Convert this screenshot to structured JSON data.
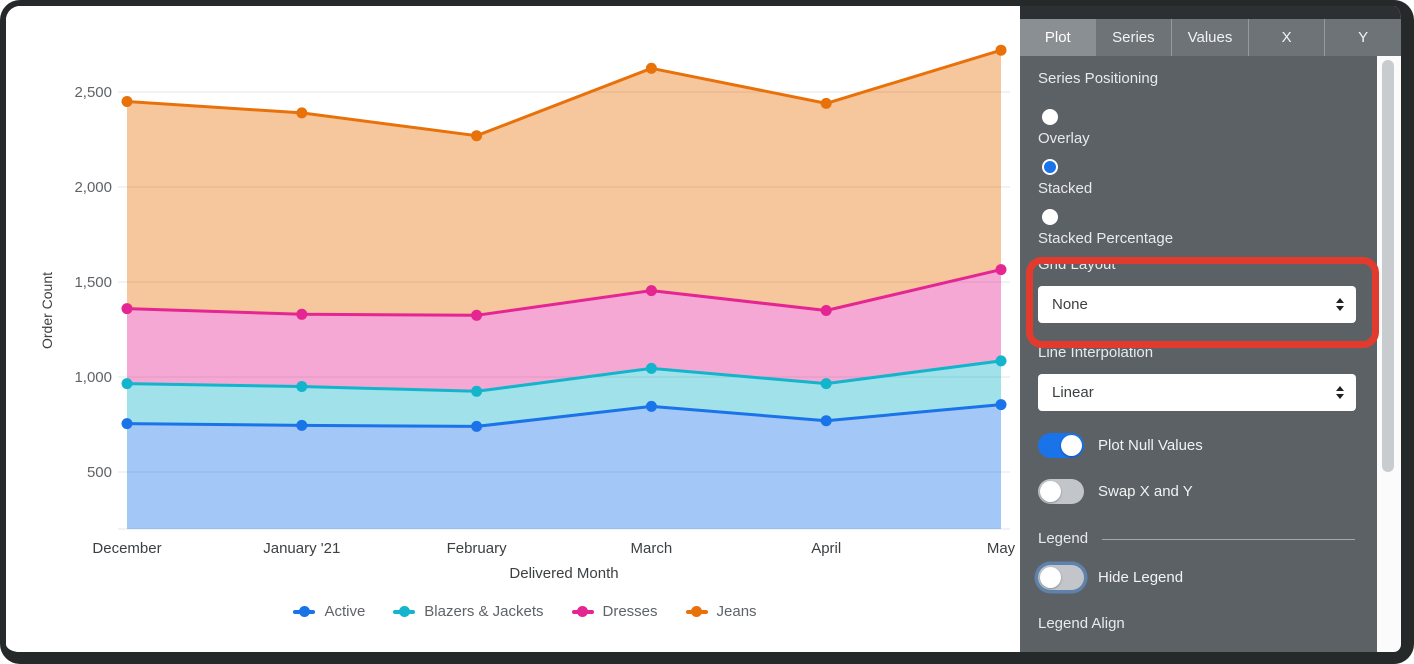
{
  "chart_data": {
    "type": "area",
    "stacking": "stacked",
    "title": "",
    "xlabel": "Delivered Month",
    "ylabel": "Order Count",
    "x": [
      "December",
      "January '21",
      "February",
      "March",
      "April",
      "May"
    ],
    "yticks": [
      500,
      1000,
      1500,
      2000,
      2500
    ],
    "ylim": [
      200,
      2780
    ],
    "grid": "horizontal",
    "legend_position": "bottom",
    "series": [
      {
        "name": "Active",
        "color": "#1a73e8",
        "values": [
          755,
          745,
          740,
          845,
          770,
          855
        ]
      },
      {
        "name": "Blazers & Jackets",
        "color": "#12b5cb",
        "values": [
          210,
          205,
          185,
          200,
          195,
          230
        ]
      },
      {
        "name": "Dresses",
        "color": "#e52592",
        "values": [
          395,
          380,
          400,
          410,
          385,
          480
        ]
      },
      {
        "name": "Jeans",
        "color": "#e8710a",
        "values": [
          1090,
          1060,
          945,
          1170,
          1090,
          1155
        ]
      }
    ],
    "cumulative_stack_tops": {
      "Active": [
        755,
        745,
        740,
        845,
        770,
        855
      ],
      "Blazers & Jackets": [
        965,
        950,
        925,
        1045,
        965,
        1085
      ],
      "Dresses": [
        1360,
        1330,
        1325,
        1455,
        1350,
        1565
      ],
      "Jeans": [
        2450,
        2390,
        2270,
        2625,
        2440,
        2720
      ]
    }
  },
  "panel": {
    "tabs": [
      "Plot",
      "Series",
      "Values",
      "X",
      "Y"
    ],
    "active_tab": "Plot",
    "series_positioning": {
      "label": "Series Positioning",
      "options": [
        "Overlay",
        "Stacked",
        "Stacked Percentage"
      ],
      "selected": "Stacked"
    },
    "grid_layout": {
      "label": "Grid Layout",
      "value": "None"
    },
    "line_interpolation": {
      "label": "Line Interpolation",
      "value": "Linear"
    },
    "toggles": {
      "plot_null_values": {
        "label": "Plot Null Values",
        "on": true
      },
      "swap_x_y": {
        "label": "Swap X and Y",
        "on": false
      },
      "hide_legend": {
        "label": "Hide Legend",
        "on": false
      }
    },
    "legend_section": {
      "label": "Legend"
    },
    "legend_align": {
      "label": "Legend Align"
    }
  },
  "annotation": {
    "shape": "rounded-rectangle",
    "color": "#e23b2e",
    "target": "Grid Layout dropdown"
  },
  "colors": {
    "panel_body": "#5c6166",
    "tabbar": "#6e7378",
    "active_tab": "#8a8f94",
    "accent_blue": "#1a73e8",
    "gridline": "#e2e4e7",
    "frame": "#25292a"
  }
}
